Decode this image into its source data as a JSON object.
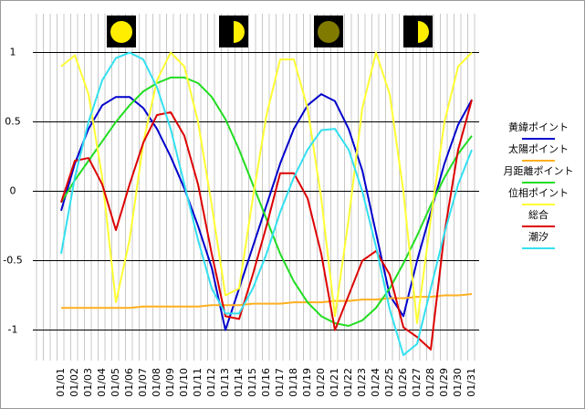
{
  "chart_data": {
    "type": "line",
    "categories": [
      "01/01",
      "01/02",
      "01/03",
      "01/04",
      "01/05",
      "01/06",
      "01/07",
      "01/08",
      "01/09",
      "01/10",
      "01/11",
      "01/12",
      "01/13",
      "01/14",
      "01/15",
      "01/16",
      "01/17",
      "01/18",
      "01/19",
      "01/20",
      "01/21",
      "01/22",
      "01/23",
      "01/24",
      "01/25",
      "01/26",
      "01/27",
      "01/28",
      "01/29",
      "01/30",
      "01/31"
    ],
    "series": [
      {
        "name": "黄緯ポイント",
        "color": "#0000cc",
        "values": [
          -0.14,
          0.2,
          0.45,
          0.62,
          0.68,
          0.68,
          0.6,
          0.45,
          0.25,
          0.02,
          -0.25,
          -0.55,
          -1.0,
          -0.7,
          -0.4,
          -0.1,
          0.2,
          0.45,
          0.62,
          0.7,
          0.65,
          0.45,
          0.15,
          -0.3,
          -0.75,
          -0.9,
          -0.5,
          -0.15,
          0.2,
          0.48,
          0.66
        ]
      },
      {
        "name": "太陽ポイント",
        "color": "#ffb020",
        "values": [
          -0.84,
          -0.84,
          -0.84,
          -0.84,
          -0.84,
          -0.84,
          -0.83,
          -0.83,
          -0.83,
          -0.83,
          -0.83,
          -0.82,
          -0.82,
          -0.82,
          -0.81,
          -0.81,
          -0.81,
          -0.8,
          -0.8,
          -0.8,
          -0.79,
          -0.79,
          -0.78,
          -0.78,
          -0.77,
          -0.77,
          -0.76,
          -0.76,
          -0.75,
          -0.75,
          -0.74
        ]
      },
      {
        "name": "月距離ポイント",
        "color": "#22dd22",
        "values": [
          -0.08,
          0.08,
          0.22,
          0.36,
          0.5,
          0.62,
          0.72,
          0.78,
          0.82,
          0.82,
          0.78,
          0.68,
          0.52,
          0.3,
          0.05,
          -0.2,
          -0.45,
          -0.65,
          -0.8,
          -0.9,
          -0.95,
          -0.97,
          -0.93,
          -0.84,
          -0.7,
          -0.52,
          -0.32,
          -0.1,
          0.1,
          0.27,
          0.4
        ]
      },
      {
        "name": "位相ポイント",
        "color": "#ffff33",
        "values": [
          0.9,
          0.98,
          0.7,
          0.1,
          -0.8,
          -0.35,
          0.35,
          0.8,
          1.0,
          0.9,
          0.5,
          -0.1,
          -0.75,
          -0.7,
          -0.05,
          0.55,
          0.95,
          0.95,
          0.6,
          -0.05,
          -0.9,
          -0.2,
          0.6,
          1.0,
          0.7,
          0.0,
          -0.95,
          -0.2,
          0.5,
          0.9,
          1.0
        ]
      },
      {
        "name": "総合",
        "color": "#dd0000",
        "values": [
          -0.08,
          0.22,
          0.24,
          0.05,
          -0.28,
          0.05,
          0.35,
          0.55,
          0.57,
          0.4,
          0.05,
          -0.45,
          -0.9,
          -0.92,
          -0.6,
          -0.25,
          0.13,
          0.13,
          -0.05,
          -0.45,
          -1.0,
          -0.75,
          -0.5,
          -0.43,
          -0.6,
          -0.98,
          -1.05,
          -1.14,
          -0.3,
          0.3,
          0.66
        ]
      },
      {
        "name": "潮汐",
        "color": "#33e0f0",
        "values": [
          -0.45,
          0.1,
          0.5,
          0.8,
          0.96,
          1.0,
          0.95,
          0.75,
          0.45,
          0.05,
          -0.35,
          -0.7,
          -0.88,
          -0.88,
          -0.7,
          -0.45,
          -0.15,
          0.1,
          0.3,
          0.44,
          0.45,
          0.3,
          0.0,
          -0.4,
          -0.85,
          -1.18,
          -1.1,
          -0.7,
          -0.3,
          0.05,
          0.3
        ]
      }
    ],
    "ylim": [
      -1.22,
      1.28
    ],
    "yticks": [
      -1,
      -0.5,
      0,
      0.5,
      1
    ],
    "grid": true
  }
}
